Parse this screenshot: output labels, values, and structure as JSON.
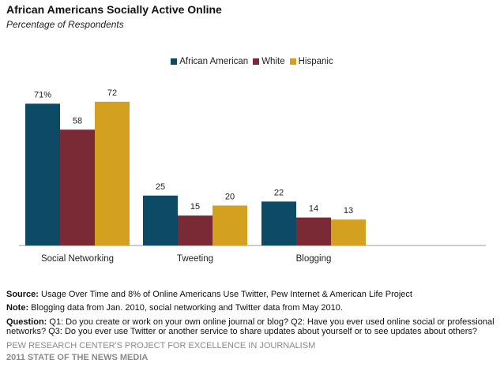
{
  "header": {
    "title": "African Americans  Socially Active Online",
    "subtitle": "Percentage of Respondents"
  },
  "colors": {
    "african_american": "#0d4a66",
    "white": "#7a2a35",
    "hispanic": "#d4a020"
  },
  "chart_data": {
    "type": "bar",
    "categories": [
      "Social Networking",
      "Tweeting",
      "Blogging"
    ],
    "series": [
      {
        "name": "African American",
        "values": [
          71,
          25,
          22
        ],
        "labels": [
          "71%",
          "25",
          "22"
        ]
      },
      {
        "name": "White",
        "values": [
          58,
          15,
          14
        ],
        "labels": [
          "58",
          "15",
          "14"
        ]
      },
      {
        "name": "Hispanic",
        "values": [
          72,
          20,
          13
        ],
        "labels": [
          "72",
          "20",
          "13"
        ]
      }
    ],
    "ylim": [
      0,
      80
    ],
    "grid": false,
    "legend": "top-center"
  },
  "notes": {
    "source_label": "Source:",
    "source_text": " Usage Over Time and 8% of Online Americans Use Twitter, Pew Internet & American Life Project",
    "note_label": "Note:",
    "note_text": " Blogging data from Jan. 2010, social networking and Twitter data from May 2010.",
    "question_label": "Question:",
    "question_text": " Q1: Do you create or work on your own online journal or blog? Q2: Have you ever used online social or professional networks? Q3: Do you ever use Twitter or another service to share updates about yourself or to see updates about others?"
  },
  "footer": {
    "line1": "PEW RESEARCH CENTER'S PROJECT FOR EXCELLENCE IN JOURNALISM",
    "line2": "2011 STATE OF THE NEWS MEDIA"
  }
}
